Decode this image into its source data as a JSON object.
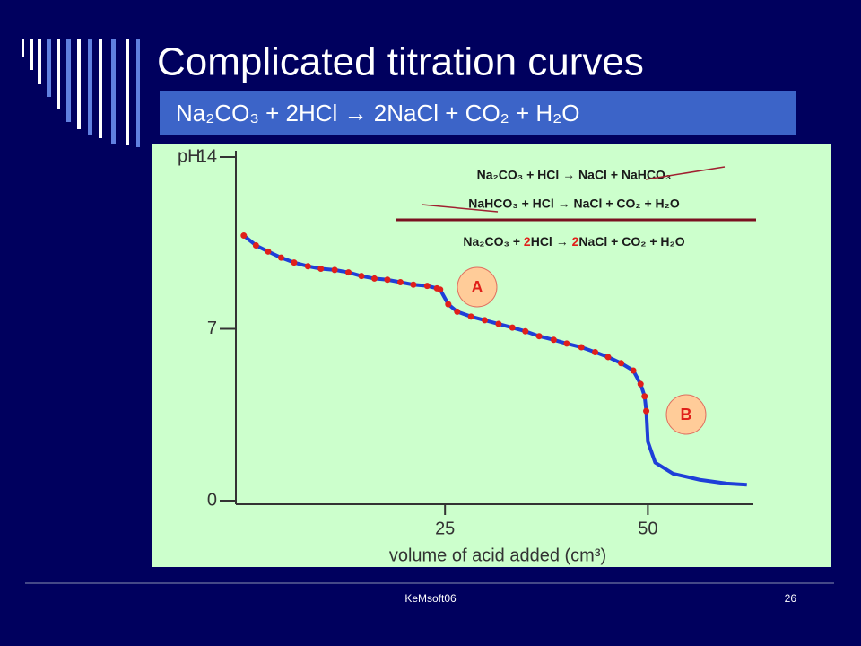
{
  "slide": {
    "title": "Complicated titration curves",
    "equation": "Na₂CO₃ + 2HCl → 2NaCl + CO₂ + H₂O",
    "footer": "KeMsoft06",
    "page": "26"
  },
  "chart_data": {
    "type": "line",
    "y_label": "pH",
    "x_label": "volume of acid added (cm³)",
    "xlim": [
      0,
      63
    ],
    "xticks": [
      25,
      50
    ],
    "ylim": [
      0,
      14
    ],
    "yticks": [
      0,
      7,
      14
    ],
    "reactions": [
      "Na₂CO₃ + HCl → NaCl + NaHCO₃",
      "NaHCO₃ + HCl → NaCl + CO₂ + H₂O"
    ],
    "overall": [
      {
        "text": "Na₂CO₃ + ",
        "color": "#1a1a1a"
      },
      {
        "text": "2",
        "color": "#e0201a"
      },
      {
        "text": "HCl → ",
        "color": "#1a1a1a"
      },
      {
        "text": "2",
        "color": "#e0201a"
      },
      {
        "text": "NaCl + CO₂ + H₂O",
        "color": "#1a1a1a"
      }
    ],
    "annotations": [
      "A",
      "B"
    ],
    "series": [
      {
        "color": "#1f3fd8",
        "x": [
          0.2,
          1.7,
          3.2,
          4.8,
          6.4,
          8.1,
          9.7,
          11.4,
          13.1,
          14.7,
          16.3,
          17.9,
          19.5,
          21.1,
          22.8,
          24.0,
          24.4,
          25.4,
          26.5,
          28.2,
          29.9,
          31.6,
          33.3,
          34.9,
          36.6,
          38.4,
          40.0,
          41.8,
          43.5,
          45.1,
          46.7,
          48.2,
          49.1,
          49.6,
          49.8,
          50.0,
          50.9,
          53.1,
          56.4,
          59.7,
          62.2
        ],
        "values": [
          10.8,
          10.4,
          10.15,
          9.9,
          9.7,
          9.55,
          9.45,
          9.4,
          9.3,
          9.15,
          9.05,
          9.0,
          8.9,
          8.8,
          8.75,
          8.65,
          8.6,
          8.0,
          7.7,
          7.5,
          7.35,
          7.2,
          7.05,
          6.9,
          6.7,
          6.55,
          6.4,
          6.25,
          6.05,
          5.85,
          5.6,
          5.3,
          4.75,
          4.25,
          3.65,
          2.4,
          1.55,
          1.1,
          0.85,
          0.7,
          0.65
        ],
        "marker_colors": [
          "#e0201a",
          "#e0201a",
          "#e0201a",
          "#e0201a",
          "#e0201a",
          "#e0201a",
          "#e0201a",
          "#e0201a",
          "#e0201a",
          "#e0201a",
          "#e0201a",
          "#e0201a",
          "#e0201a",
          "#e0201a",
          "#e0201a",
          "#e0201a",
          "#e0201a",
          "#e0201a",
          "#e0201a",
          "#e0201a",
          "#e0201a",
          "#e0201a",
          "#e0201a",
          "#e0201a",
          "#e0201a",
          "#e0201a",
          "#e0201a",
          "#e0201a",
          "#e0201a",
          "#e0201a",
          "#e0201a",
          "#e0201a",
          "#e0201a",
          "#e0201a",
          "#e0201a",
          null,
          null,
          null,
          null,
          null,
          null
        ]
      }
    ]
  }
}
